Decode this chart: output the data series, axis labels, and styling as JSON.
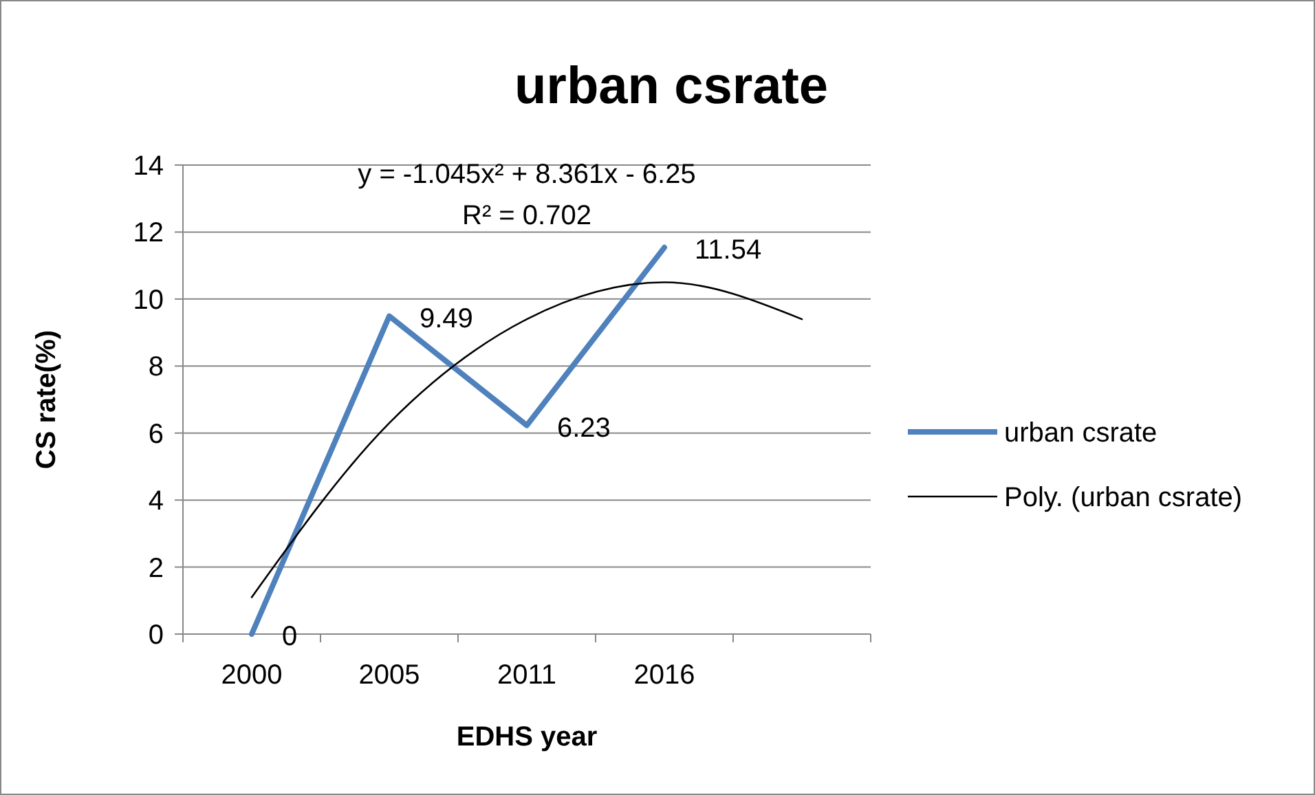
{
  "chart_data": {
    "type": "line",
    "title": "urban csrate",
    "xlabel": "EDHS year",
    "ylabel": "CS rate(%)",
    "categories": [
      "2000",
      "2005",
      "2011",
      "2016",
      null
    ],
    "series": [
      {
        "name": "urban csrate",
        "color": "#4f81bd",
        "values": [
          0,
          9.49,
          6.23,
          11.54,
          null
        ],
        "value_labels": [
          "0",
          "9.49",
          "6.23",
          "11.54",
          null
        ]
      },
      {
        "name": "Poly. (urban csrate)",
        "color": "#000000",
        "values": [
          1.1,
          6.3,
          9.4,
          10.5,
          9.4
        ]
      }
    ],
    "ylim": [
      0,
      14
    ],
    "yticks": [
      0,
      2,
      4,
      6,
      8,
      10,
      12,
      14
    ],
    "grid": "y",
    "legend": "right",
    "annotations": [
      "y = -1.045x² + 8.361x - 6.25",
      "R² = 0.702"
    ]
  }
}
